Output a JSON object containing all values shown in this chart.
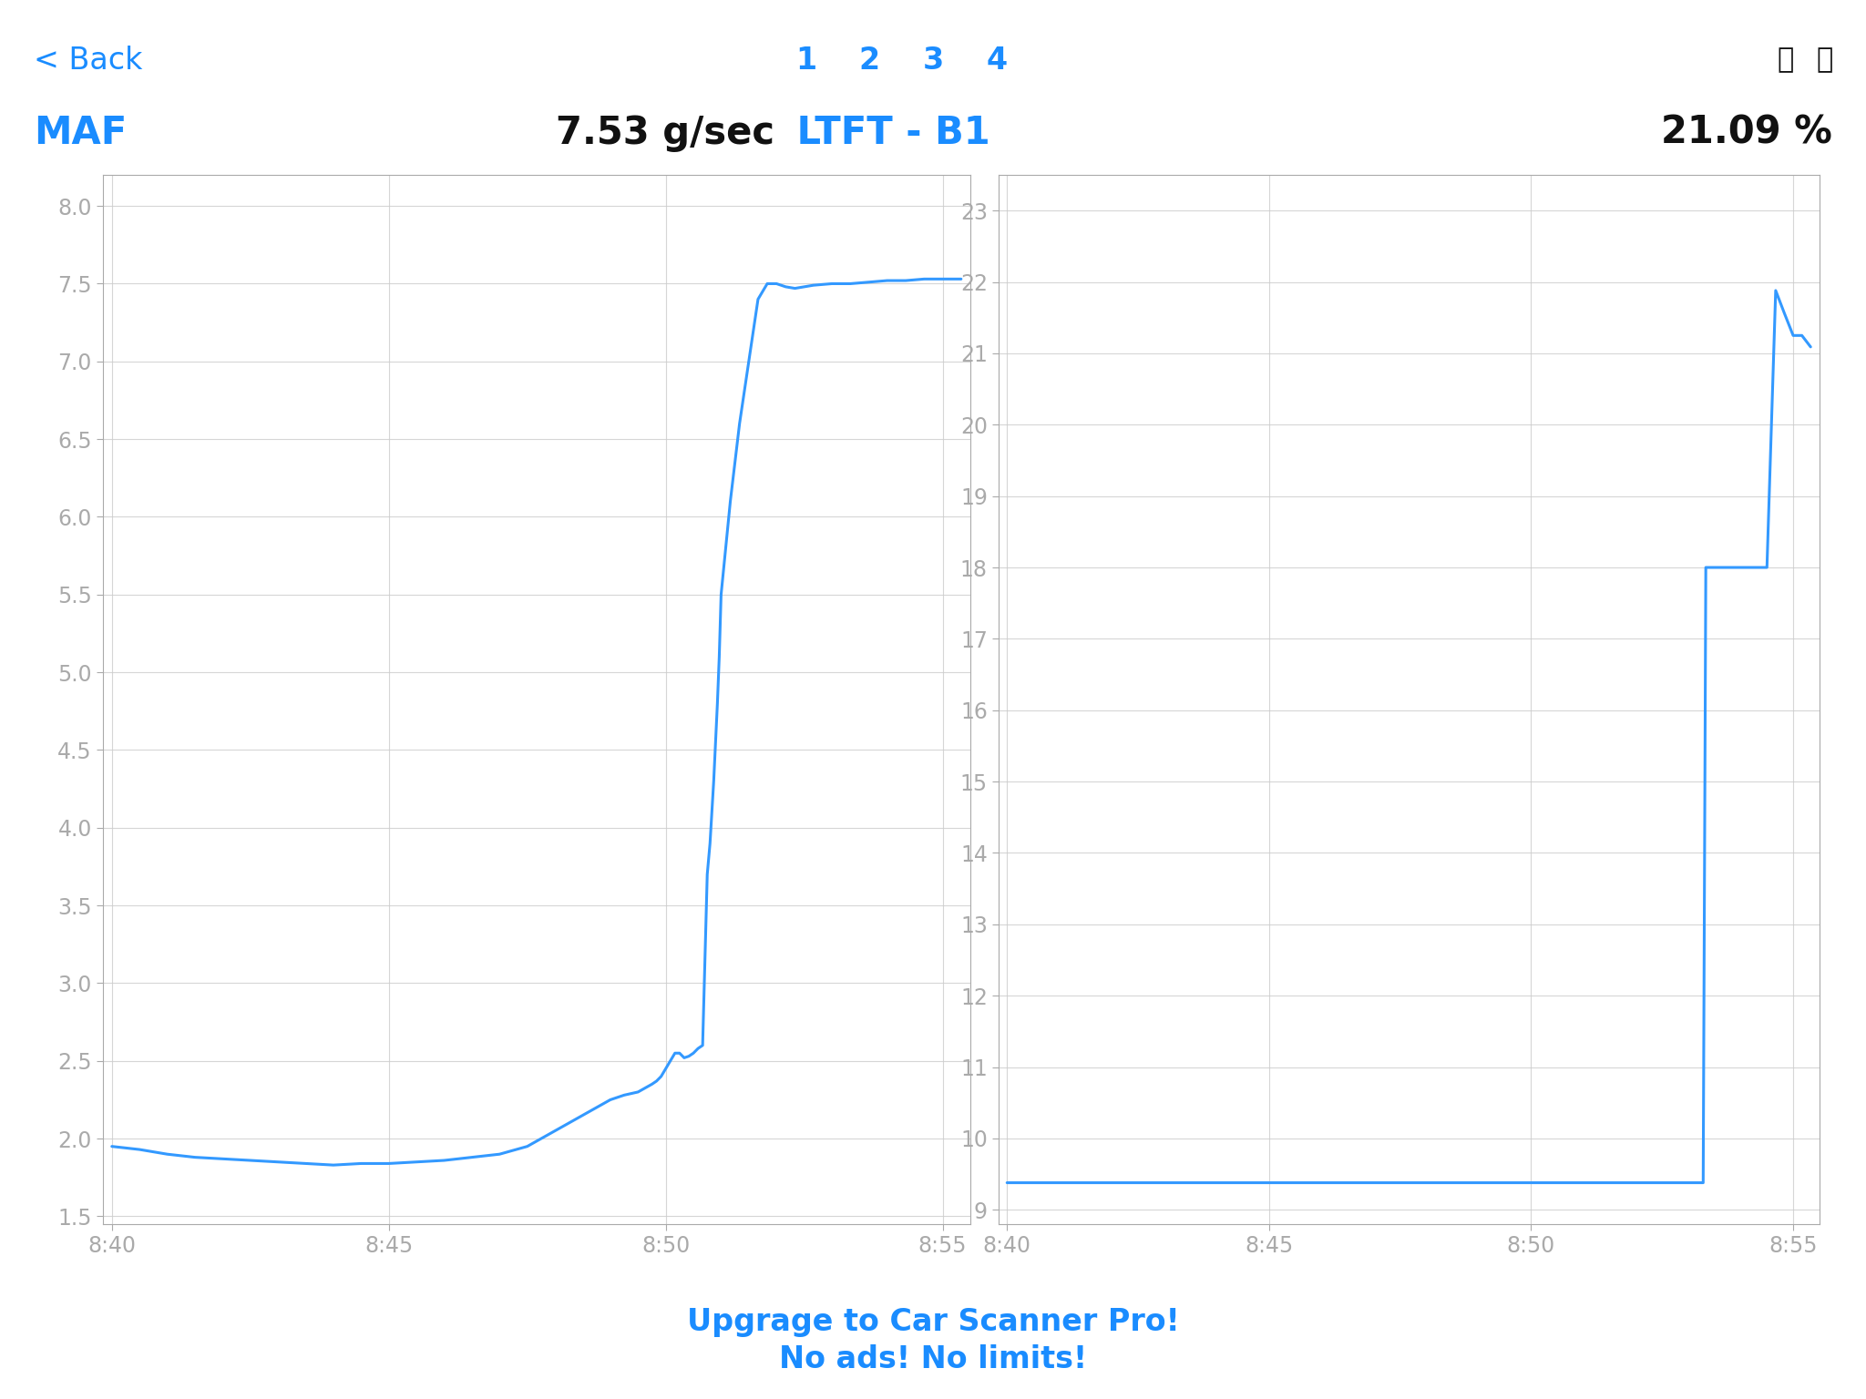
{
  "title_back": "< Back",
  "nav_numbers": [
    "1",
    "2",
    "3",
    "4"
  ],
  "label_maf": "MAF",
  "value_maf": "7.53 g/sec",
  "label_ltft": "LTFT - B1",
  "value_ltft": "21.09 %",
  "footer_line1": "Upgrage to Car Scanner Pro!",
  "footer_line2": "No ads! No limits!",
  "blue_color": "#1a8cff",
  "line_color": "#3399ff",
  "grid_color": "#cccccc",
  "axis_color": "#aaaaaa",
  "text_color_dark": "#111111",
  "background_color": "#ffffff",
  "maf_ylim": [
    1.45,
    8.2
  ],
  "maf_yticks": [
    1.5,
    2.0,
    2.5,
    3.0,
    3.5,
    4.0,
    4.5,
    5.0,
    5.5,
    6.0,
    6.5,
    7.0,
    7.5,
    8.0
  ],
  "ltft_ylim": [
    8.8,
    23.5
  ],
  "ltft_yticks": [
    9,
    10,
    11,
    12,
    13,
    14,
    15,
    16,
    17,
    18,
    19,
    20,
    21,
    22,
    23
  ],
  "x_ticks_labels": [
    "8:40",
    "8:45",
    "8:50",
    "8:55"
  ],
  "x_ticks_pos": [
    0,
    300,
    600,
    900
  ],
  "x_lim": [
    -10,
    930
  ],
  "maf_x": [
    0,
    30,
    60,
    90,
    120,
    150,
    180,
    210,
    240,
    270,
    300,
    330,
    360,
    390,
    420,
    450,
    480,
    510,
    540,
    555,
    570,
    585,
    590,
    595,
    600,
    605,
    610,
    615,
    620,
    625,
    630,
    635,
    640,
    645,
    648,
    650,
    652,
    654,
    656,
    658,
    660,
    670,
    680,
    690,
    700,
    710,
    720,
    730,
    740,
    750,
    760,
    780,
    800,
    820,
    840,
    860,
    880,
    900,
    920
  ],
  "maf_y": [
    1.95,
    1.93,
    1.9,
    1.88,
    1.87,
    1.86,
    1.85,
    1.84,
    1.83,
    1.84,
    1.84,
    1.85,
    1.86,
    1.88,
    1.9,
    1.95,
    2.05,
    2.15,
    2.25,
    2.28,
    2.3,
    2.35,
    2.37,
    2.4,
    2.45,
    2.5,
    2.55,
    2.55,
    2.52,
    2.53,
    2.55,
    2.58,
    2.6,
    3.7,
    3.9,
    4.1,
    4.3,
    4.55,
    4.8,
    5.1,
    5.5,
    6.1,
    6.6,
    7.0,
    7.4,
    7.5,
    7.5,
    7.48,
    7.47,
    7.48,
    7.49,
    7.5,
    7.5,
    7.51,
    7.52,
    7.52,
    7.53,
    7.53,
    7.53
  ],
  "ltft_x": [
    0,
    60,
    120,
    180,
    240,
    300,
    360,
    420,
    480,
    498,
    499,
    500,
    502,
    510,
    520,
    530,
    540,
    550,
    560,
    570,
    580,
    590,
    600,
    610,
    620,
    630,
    640,
    650,
    660,
    670,
    680,
    690,
    700,
    710,
    720,
    730,
    740,
    750,
    760,
    770,
    780,
    795,
    796,
    797,
    800,
    810,
    820,
    830,
    840,
    850,
    860,
    870,
    880,
    890,
    900,
    910,
    920
  ],
  "ltft_y": [
    9.38,
    9.38,
    9.38,
    9.38,
    9.38,
    9.38,
    9.38,
    9.38,
    9.38,
    9.38,
    9.38,
    9.38,
    9.38,
    9.38,
    9.38,
    9.38,
    9.38,
    9.38,
    9.38,
    9.38,
    9.38,
    9.38,
    9.38,
    9.38,
    9.38,
    9.38,
    9.38,
    9.38,
    9.38,
    9.38,
    9.38,
    9.38,
    9.38,
    9.38,
    9.38,
    9.38,
    9.38,
    9.38,
    9.38,
    9.38,
    9.38,
    9.38,
    9.38,
    9.38,
    18.0,
    18.0,
    18.0,
    18.0,
    18.0,
    18.0,
    18.0,
    18.0,
    21.88,
    21.56,
    21.25,
    21.25,
    21.09
  ]
}
